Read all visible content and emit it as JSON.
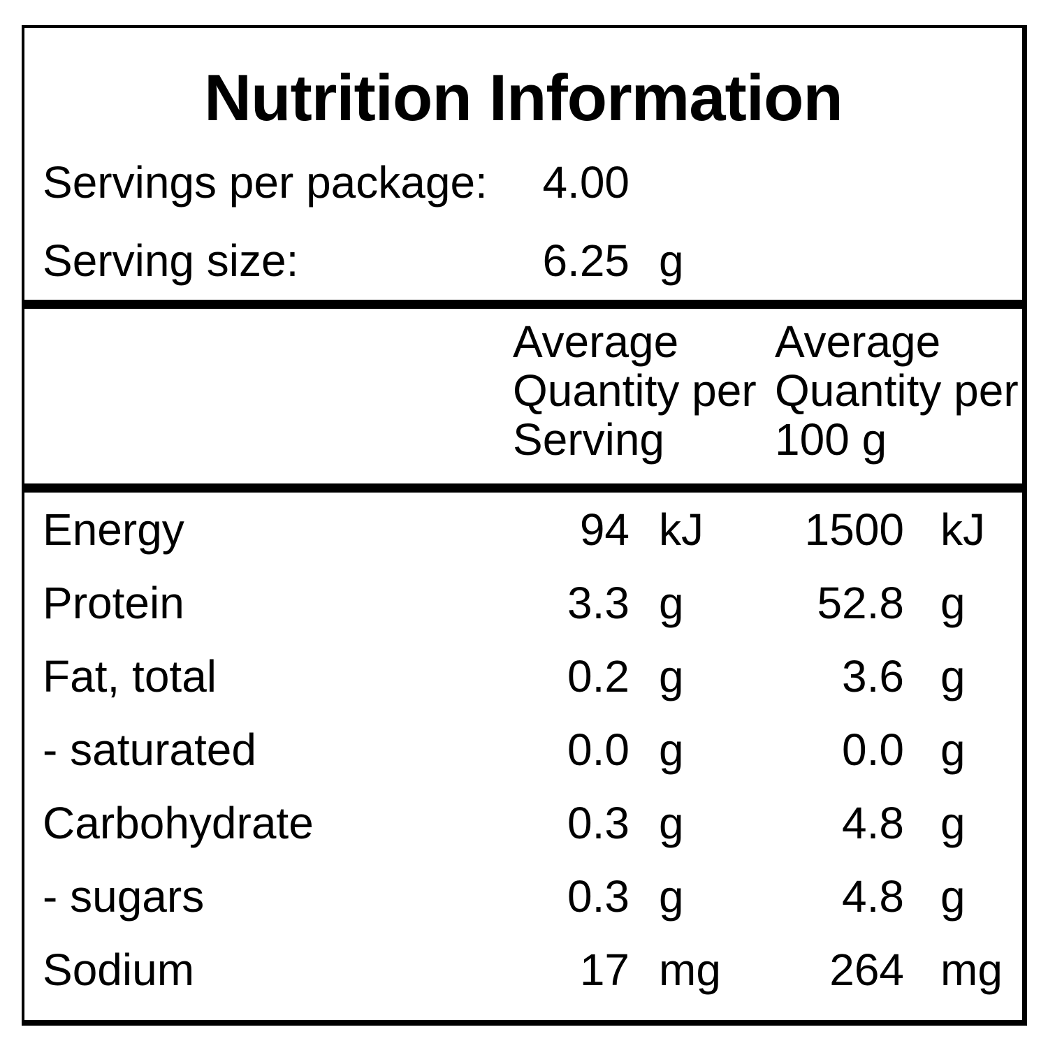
{
  "title": "Nutrition Information",
  "serving_rows": [
    {
      "label": "Servings per package:",
      "value": "4.00",
      "unit": ""
    },
    {
      "label": "Serving size:",
      "value": "6.25",
      "unit": "g"
    }
  ],
  "column_headers": {
    "per_serving": "Average\nQuantity per\nServing",
    "per_100g": "Average\nQuantity per\n100 g"
  },
  "nutrient_rows": [
    {
      "name": "Energy",
      "serving_value": "94",
      "serving_unit": "kJ",
      "per100_value": "1500",
      "per100_unit": "kJ"
    },
    {
      "name": "Protein",
      "serving_value": "3.3",
      "serving_unit": "g",
      "per100_value": "52.8",
      "per100_unit": "g"
    },
    {
      "name": "Fat, total",
      "serving_value": "0.2",
      "serving_unit": "g",
      "per100_value": "3.6",
      "per100_unit": "g"
    },
    {
      "name": "- saturated",
      "serving_value": "0.0",
      "serving_unit": "g",
      "per100_value": "0.0",
      "per100_unit": "g"
    },
    {
      "name": "Carbohydrate",
      "serving_value": "0.3",
      "serving_unit": "g",
      "per100_value": "4.8",
      "per100_unit": "g"
    },
    {
      "name": "- sugars",
      "serving_value": "0.3",
      "serving_unit": "g",
      "per100_value": "4.8",
      "per100_unit": "g"
    },
    {
      "name": "Sodium",
      "serving_value": "17",
      "serving_unit": "mg",
      "per100_value": "264",
      "per100_unit": "mg"
    }
  ]
}
